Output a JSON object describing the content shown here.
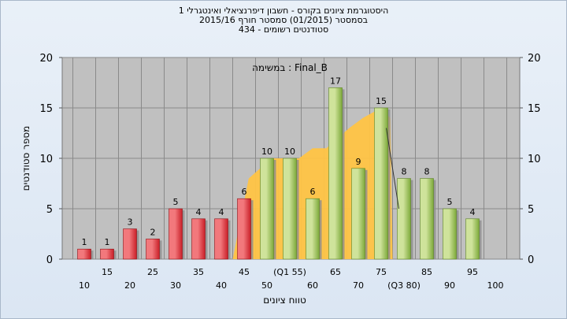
{
  "header": {
    "line1": "היסטוגרמת ציונים בקורס - חשבון דיפרנציאלי ואינטגרלי 1",
    "line2": "בסמסטר  (01/2015)  סמסטר חורף  2015/16",
    "line3": "סטודנטים רשומים - 434"
  },
  "chart_data": {
    "type": "bar",
    "title": "היסטוגרמת ציונים בקורס - חשבון דיפרנציאלי ואינטגרלי 1",
    "subtitle": "בסמסטר  (01/2015)  סמסטר חורף  2015/16 ; סטודנטים רשומים - 434",
    "xlabel": "טווח ציונים",
    "ylabel": "מספר סטודנטים",
    "ylim": [
      0,
      20
    ],
    "yticks": [
      0,
      5,
      10,
      15,
      20
    ],
    "grid": true,
    "annotation": "במשימה : Final_B",
    "x_tick_labels": [
      "10",
      "15",
      "20",
      "25",
      "30",
      "35",
      "40",
      "45",
      "50",
      "(Q1 55)",
      "60",
      "65",
      "70",
      "75",
      "(Q3 80)",
      "85",
      "90",
      "95",
      "100"
    ],
    "bars": [
      {
        "x": "15",
        "value": 1,
        "label": "1",
        "color": "red"
      },
      {
        "x": "20",
        "value": 1,
        "label": "1",
        "color": "red"
      },
      {
        "x": "25",
        "value": 3,
        "label": "3",
        "color": "red"
      },
      {
        "x": "30",
        "value": 2,
        "label": "2",
        "color": "red"
      },
      {
        "x": "35",
        "value": 5,
        "label": "5",
        "color": "red"
      },
      {
        "x": "40",
        "value": 4,
        "label": "4",
        "color": "red"
      },
      {
        "x": "45",
        "value": 4,
        "label": "4",
        "color": "red"
      },
      {
        "x": "50",
        "value": 6,
        "label": "6",
        "color": "red"
      },
      {
        "x": "(Q1 55)",
        "value": 10,
        "label": "10",
        "color": "green"
      },
      {
        "x": "60",
        "value": 10,
        "label": "10",
        "color": "green"
      },
      {
        "x": "65",
        "value": 6,
        "label": "6",
        "color": "green"
      },
      {
        "x": "70",
        "value": 17,
        "label": "17",
        "color": "green"
      },
      {
        "x": "75",
        "value": 9,
        "label": "9",
        "color": "green"
      },
      {
        "x": "(Q3 80)",
        "value": 15,
        "label": "15",
        "color": "green"
      },
      {
        "x": "85",
        "value": 8,
        "label": "8",
        "color": "green"
      },
      {
        "x": "90",
        "value": 8,
        "label": "8",
        "color": "green"
      },
      {
        "x": "95",
        "value": 5,
        "label": "5",
        "color": "green"
      },
      {
        "x": "100",
        "value": 4,
        "label": "4",
        "color": "green"
      }
    ],
    "area": {
      "color": "#ffc445",
      "points": [
        {
          "x": 47.5,
          "y": 0
        },
        {
          "x": 51,
          "y": 8
        },
        {
          "x": 56,
          "y": 10
        },
        {
          "x": 62,
          "y": 10
        },
        {
          "x": 65,
          "y": 11
        },
        {
          "x": 68,
          "y": 11
        },
        {
          "x": 73,
          "y": 13
        },
        {
          "x": 76,
          "y": 14
        },
        {
          "x": 80,
          "y": 15
        },
        {
          "x": 82,
          "y": 14
        },
        {
          "x": 82.5,
          "y": 0
        }
      ]
    },
    "colors": {
      "red_light": "#f2787c",
      "red_dark": "#c91f28",
      "green_light": "#cfe39b",
      "green_dark": "#7da93a",
      "plot_bg": "#c0c0c0",
      "grid": "#8a8a8a"
    }
  }
}
